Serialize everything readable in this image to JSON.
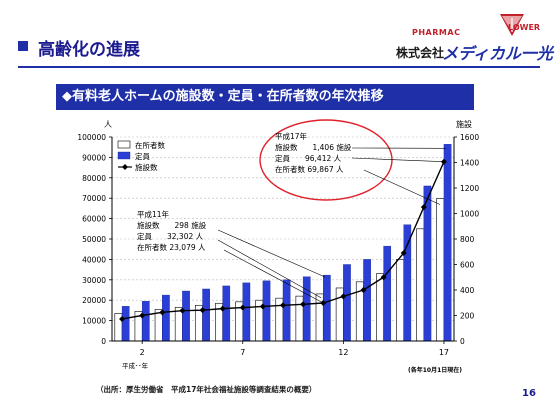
{
  "slide": {
    "title": "高齢化の進展",
    "subtitle": "◆有料老人ホームの施設数・定員・在所者数の年次推移",
    "source": "（出所：厚生労働省　平成17年社会福祉施設等調査結果の概要）",
    "page_number": "16"
  },
  "logo": {
    "pharmacy_text": "PHARMAC",
    "flower_text": "LOWER",
    "company_prefix": "株式会社",
    "brand_name": "メディカル一光"
  },
  "colors": {
    "accent": "#1f2fa8",
    "bar_teiin": "#2b3fd6",
    "bar_zaisho": "#ffffff",
    "line": "#000000",
    "ellipse": "#e0202a"
  },
  "chart_data": {
    "type": "bar",
    "x": [
      1,
      2,
      3,
      4,
      5,
      6,
      7,
      8,
      9,
      10,
      11,
      12,
      13,
      14,
      15,
      16,
      17
    ],
    "xticks": [
      "2",
      "7",
      "12",
      "17"
    ],
    "xticks_positions": [
      2,
      7,
      12,
      17
    ],
    "xlabel": "平成･･年",
    "left_unit": "人",
    "right_unit": "施設",
    "ylim": [
      0,
      100000
    ],
    "yticks_left": [
      "0",
      "10000",
      "20000",
      "30000",
      "40000",
      "50000",
      "60000",
      "70000",
      "80000",
      "90000",
      "100000"
    ],
    "ylim_right": [
      0,
      1600
    ],
    "yticks_right": [
      "0",
      "200",
      "400",
      "600",
      "800",
      "1000",
      "1200",
      "1400",
      "1600"
    ],
    "date_note": "(各年10月1日現在)",
    "legend": [
      "在所者数",
      "定員",
      "施設数"
    ],
    "legend_position": "top-left",
    "series": [
      {
        "name": "在所者数",
        "kind": "bar",
        "values": [
          13500,
          14500,
          15500,
          16500,
          17500,
          18500,
          19200,
          20000,
          21000,
          22000,
          23079,
          26000,
          29000,
          33000,
          40000,
          55000,
          69867
        ]
      },
      {
        "name": "定員",
        "kind": "bar",
        "values": [
          17000,
          19500,
          22500,
          24500,
          25500,
          27000,
          28500,
          29500,
          30000,
          31500,
          32302,
          37500,
          40000,
          46500,
          57000,
          76000,
          96412
        ]
      },
      {
        "name": "施設数",
        "kind": "line",
        "axis": "right",
        "values": [
          173,
          200,
          225,
          238,
          242,
          254,
          262,
          271,
          280,
          288,
          298,
          350,
          400,
          500,
          690,
          1050,
          1406
        ]
      }
    ],
    "annotations": [
      {
        "lines": [
          "平成11年",
          "施設数　　298 施設",
          "定員　　32,302 人",
          "在所者数 23,079 人"
        ]
      },
      {
        "lines": [
          "平成17年",
          "施設数　　1,406 施設",
          "定員　　96,412 人",
          "在所者数 69,867 人"
        ]
      }
    ]
  }
}
